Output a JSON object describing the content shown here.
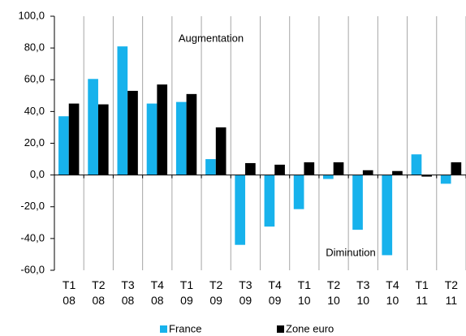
{
  "chart_data": {
    "type": "bar",
    "categories": [
      "T1 08",
      "T2 08",
      "T3 08",
      "T4 08",
      "T1 09",
      "T2 09",
      "T3 09",
      "T4 09",
      "T1 10",
      "T2 10",
      "T3 10",
      "T4 10",
      "T1 11",
      "T2 11"
    ],
    "series": [
      {
        "name": "France",
        "color": "#17b2ec",
        "values": [
          37,
          60.5,
          81,
          45,
          46,
          10,
          -44,
          -32.5,
          -21.5,
          -2.5,
          -34.5,
          -50.5,
          13,
          -5.5
        ]
      },
      {
        "name": "Zone euro",
        "color": "#000000",
        "values": [
          45,
          44.5,
          53,
          57,
          51,
          30,
          7.5,
          6.5,
          8,
          8,
          3,
          2.5,
          -1,
          8
        ]
      }
    ],
    "ylim": [
      -60,
      100
    ],
    "yticks": [
      {
        "value": -60,
        "label": "-60,0"
      },
      {
        "value": -40,
        "label": "-40,0"
      },
      {
        "value": -20,
        "label": "-20,0"
      },
      {
        "value": 0,
        "label": "0,0"
      },
      {
        "value": 20,
        "label": "20,0"
      },
      {
        "value": 40,
        "label": "40,0"
      },
      {
        "value": 60,
        "label": "60,0"
      },
      {
        "value": 80,
        "label": "80,0"
      },
      {
        "value": 100,
        "label": "100,0"
      }
    ],
    "annotations": [
      "Augmentation",
      "Diminution"
    ],
    "grid": "vertical",
    "legend": "bottom"
  }
}
